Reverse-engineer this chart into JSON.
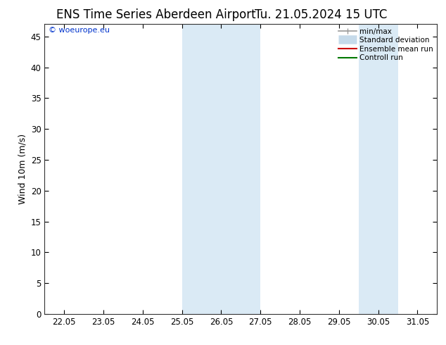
{
  "title_left": "ENS Time Series Aberdeen Airport",
  "title_right": "Tu. 21.05.2024 15 UTC",
  "ylabel": "Wind 10m (m/s)",
  "watermark": "© woeurope.eu",
  "x_tick_labels": [
    "22.05",
    "23.05",
    "24.05",
    "25.05",
    "26.05",
    "27.05",
    "28.05",
    "29.05",
    "30.05",
    "31.05"
  ],
  "x_tick_positions": [
    0,
    1,
    2,
    3,
    4,
    5,
    6,
    7,
    8,
    9
  ],
  "ylim": [
    0,
    47
  ],
  "yticks": [
    0,
    5,
    10,
    15,
    20,
    25,
    30,
    35,
    40,
    45
  ],
  "xlim": [
    -0.5,
    9.5
  ],
  "shaded_bands": [
    {
      "x_start": 3.0,
      "x_end": 5.0,
      "color": "#daeaf5"
    },
    {
      "x_start": 7.5,
      "x_end": 8.5,
      "color": "#daeaf5"
    }
  ],
  "bg_color": "#ffffff",
  "plot_bg_color": "#ffffff",
  "legend_items": [
    {
      "label": "min/max",
      "color": "#aaaaaa",
      "lw": 1.2
    },
    {
      "label": "Standard deviation",
      "color": "#ccddee",
      "lw": 8
    },
    {
      "label": "Ensemble mean run",
      "color": "#cc0000",
      "lw": 1.5
    },
    {
      "label": "Controll run",
      "color": "#007700",
      "lw": 1.5
    }
  ],
  "title_fontsize": 12,
  "tick_fontsize": 8.5,
  "ylabel_fontsize": 9,
  "watermark_fontsize": 8,
  "watermark_color": "#0033cc"
}
